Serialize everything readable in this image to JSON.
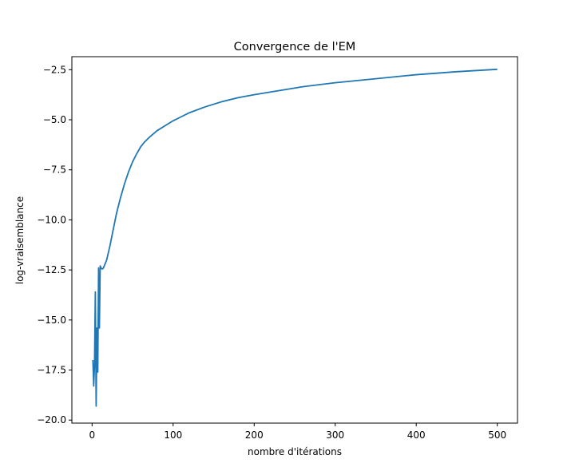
{
  "chart_data": {
    "type": "line",
    "title": "Convergence de l'EM",
    "xlabel": "nombre d'itérations",
    "ylabel": "log-vraisemblance",
    "xlim": [
      -24.95,
      524.95
    ],
    "ylim": [
      -20.15,
      -1.85
    ],
    "grid": false,
    "x_ticks": [
      0,
      100,
      200,
      300,
      400,
      500
    ],
    "x_tick_labels": [
      "0",
      "100",
      "200",
      "300",
      "400",
      "500"
    ],
    "y_ticks": [
      -20.0,
      -17.5,
      -15.0,
      -12.5,
      -10.0,
      -7.5,
      -5.0,
      -2.5
    ],
    "y_tick_labels": [
      "−20.0",
      "−17.5",
      "−15.0",
      "−12.5",
      "−10.0",
      "−7.5",
      "−5.0",
      "−2.5"
    ],
    "line_color": "#1f77b4",
    "series": [
      {
        "x": [
          1,
          2,
          3,
          4,
          5,
          6,
          7,
          8,
          9,
          10,
          11,
          12,
          13,
          14,
          15,
          18,
          22,
          26,
          30,
          35,
          40,
          45,
          50,
          55,
          60,
          65,
          70,
          80,
          90,
          100,
          110,
          120,
          140,
          160,
          180,
          200,
          230,
          260,
          300,
          350,
          400,
          450,
          500
        ],
        "y": [
          -17.0,
          -18.3,
          -17.2,
          -13.6,
          -19.3,
          -15.4,
          -17.6,
          -12.4,
          -15.4,
          -12.3,
          -12.4,
          -12.45,
          -12.45,
          -12.4,
          -12.3,
          -12.0,
          -11.3,
          -10.5,
          -9.7,
          -8.9,
          -8.2,
          -7.6,
          -7.1,
          -6.7,
          -6.35,
          -6.1,
          -5.9,
          -5.55,
          -5.3,
          -5.05,
          -4.85,
          -4.65,
          -4.35,
          -4.1,
          -3.9,
          -3.75,
          -3.55,
          -3.35,
          -3.15,
          -2.95,
          -2.75,
          -2.6,
          -2.48
        ]
      }
    ]
  }
}
